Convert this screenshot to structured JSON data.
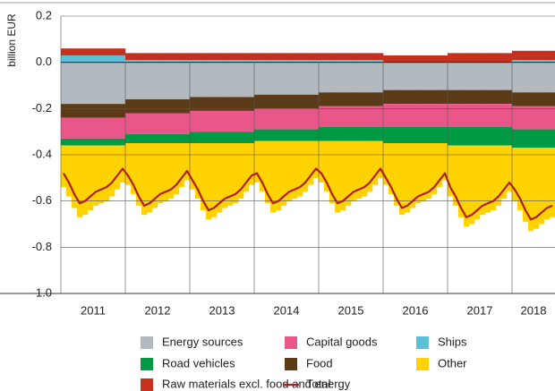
{
  "chart_data": {
    "type": "stacked_bar",
    "y_label": "billion EUR",
    "categories": [
      null,
      null,
      null,
      null,
      null,
      null,
      "2011",
      null,
      null,
      null,
      null,
      null,
      null,
      null,
      null,
      null,
      null,
      null,
      "2012",
      null,
      null,
      null,
      null,
      null,
      null,
      null,
      null,
      null,
      null,
      null,
      "2013",
      null,
      null,
      null,
      null,
      null,
      null,
      null,
      null,
      null,
      null,
      null,
      "2014",
      null,
      null,
      null,
      null,
      null,
      null,
      null,
      null,
      null,
      null,
      null,
      "2015",
      null,
      null,
      null,
      null,
      null,
      null,
      null,
      null,
      null,
      null,
      null,
      "2016",
      null,
      null,
      null,
      null,
      null,
      null,
      null,
      null,
      null,
      null,
      null,
      "2017",
      null,
      null,
      null,
      null,
      null,
      null,
      null,
      null,
      null,
      "2018",
      null,
      null,
      null
    ],
    "ylim": [
      -1,
      0.2
    ],
    "yticks": [
      0.2,
      {
        "value": 0,
        "label": "0.0"
      },
      -0.2,
      -0.4,
      -0.6,
      -0.8,
      {
        "value": -1,
        "label": "-1.0"
      }
    ],
    "grid": true,
    "series": [
      {
        "name": "Ships",
        "color": "#5bc0d8",
        "values": [
          0.03,
          0.03,
          0.03,
          0.03,
          0.03,
          0.03,
          0.03,
          0.03,
          0.03,
          0.03,
          0.03,
          0.03,
          0.01,
          0.01,
          0.01,
          0.01,
          0.01,
          0.01,
          0.01,
          0.01,
          0.01,
          0.01,
          0.01,
          0.01,
          0.01,
          0.01,
          0.01,
          0.01,
          0.01,
          0.01,
          0.01,
          0.01,
          0.01,
          0.01,
          0.01,
          0.01,
          0.01,
          0.01,
          0.01,
          0.01,
          0.01,
          0.01,
          0.01,
          0.01,
          0.01,
          0.01,
          0.01,
          0.01,
          0.01,
          0.01,
          0.01,
          0.01,
          0.01,
          0.01,
          0.01,
          0.01,
          0.01,
          0.01,
          0.01,
          0.01,
          0,
          0,
          0,
          0,
          0,
          0,
          0,
          0,
          0,
          0,
          0,
          0,
          0,
          0,
          0,
          0,
          0,
          0,
          0,
          0,
          0,
          0,
          0,
          0,
          0.01,
          0.01,
          0.01,
          0.01,
          0.01,
          0.01,
          0.01,
          0.01
        ]
      },
      {
        "name": "Raw materials excl. food and energy",
        "color": "#c4321f",
        "values": [
          0.03,
          0.03,
          0.03,
          0.03,
          0.03,
          0.03,
          0.03,
          0.03,
          0.03,
          0.03,
          0.03,
          0.03,
          0.03,
          0.03,
          0.03,
          0.03,
          0.03,
          0.03,
          0.03,
          0.03,
          0.03,
          0.03,
          0.03,
          0.03,
          0.03,
          0.03,
          0.03,
          0.03,
          0.03,
          0.03,
          0.03,
          0.03,
          0.03,
          0.03,
          0.03,
          0.03,
          0.03,
          0.03,
          0.03,
          0.03,
          0.03,
          0.03,
          0.03,
          0.03,
          0.03,
          0.03,
          0.03,
          0.03,
          0.03,
          0.03,
          0.03,
          0.03,
          0.03,
          0.03,
          0.03,
          0.03,
          0.03,
          0.03,
          0.03,
          0.03,
          0.03,
          0.03,
          0.03,
          0.03,
          0.03,
          0.03,
          0.03,
          0.03,
          0.03,
          0.03,
          0.03,
          0.03,
          0.04,
          0.04,
          0.04,
          0.04,
          0.04,
          0.04,
          0.04,
          0.04,
          0.04,
          0.04,
          0.04,
          0.04,
          0.04,
          0.04,
          0.04,
          0.04,
          0.04,
          0.04,
          0.04,
          0.04
        ]
      },
      {
        "name": "Energy sources",
        "color": "#b3babf",
        "values": [
          -0.18,
          -0.18,
          -0.18,
          -0.18,
          -0.18,
          -0.18,
          -0.18,
          -0.18,
          -0.18,
          -0.18,
          -0.18,
          -0.18,
          -0.16,
          -0.16,
          -0.16,
          -0.16,
          -0.16,
          -0.16,
          -0.16,
          -0.16,
          -0.16,
          -0.16,
          -0.16,
          -0.16,
          -0.15,
          -0.15,
          -0.15,
          -0.15,
          -0.15,
          -0.15,
          -0.15,
          -0.15,
          -0.15,
          -0.15,
          -0.15,
          -0.15,
          -0.14,
          -0.14,
          -0.14,
          -0.14,
          -0.14,
          -0.14,
          -0.14,
          -0.14,
          -0.14,
          -0.14,
          -0.14,
          -0.14,
          -0.13,
          -0.13,
          -0.13,
          -0.13,
          -0.13,
          -0.13,
          -0.13,
          -0.13,
          -0.13,
          -0.13,
          -0.13,
          -0.13,
          -0.12,
          -0.12,
          -0.12,
          -0.12,
          -0.12,
          -0.12,
          -0.12,
          -0.12,
          -0.12,
          -0.12,
          -0.12,
          -0.12,
          -0.12,
          -0.12,
          -0.12,
          -0.12,
          -0.12,
          -0.12,
          -0.12,
          -0.12,
          -0.12,
          -0.12,
          -0.12,
          -0.12,
          -0.13,
          -0.13,
          -0.13,
          -0.13,
          -0.13,
          -0.13,
          -0.13,
          -0.13
        ]
      },
      {
        "name": "Food",
        "color": "#5a3a17",
        "values": [
          -0.06,
          -0.06,
          -0.06,
          -0.06,
          -0.06,
          -0.06,
          -0.06,
          -0.06,
          -0.06,
          -0.06,
          -0.06,
          -0.06,
          -0.06,
          -0.06,
          -0.06,
          -0.06,
          -0.06,
          -0.06,
          -0.06,
          -0.06,
          -0.06,
          -0.06,
          -0.06,
          -0.06,
          -0.06,
          -0.06,
          -0.06,
          -0.06,
          -0.06,
          -0.06,
          -0.06,
          -0.06,
          -0.06,
          -0.06,
          -0.06,
          -0.06,
          -0.06,
          -0.06,
          -0.06,
          -0.06,
          -0.06,
          -0.06,
          -0.06,
          -0.06,
          -0.06,
          -0.06,
          -0.06,
          -0.06,
          -0.06,
          -0.06,
          -0.06,
          -0.06,
          -0.06,
          -0.06,
          -0.06,
          -0.06,
          -0.06,
          -0.06,
          -0.06,
          -0.06,
          -0.06,
          -0.06,
          -0.06,
          -0.06,
          -0.06,
          -0.06,
          -0.06,
          -0.06,
          -0.06,
          -0.06,
          -0.06,
          -0.06,
          -0.06,
          -0.06,
          -0.06,
          -0.06,
          -0.06,
          -0.06,
          -0.06,
          -0.06,
          -0.06,
          -0.06,
          -0.06,
          -0.06,
          -0.06,
          -0.06,
          -0.06,
          -0.06,
          -0.06,
          -0.06,
          -0.06,
          -0.06
        ]
      },
      {
        "name": "Capital goods",
        "color": "#e9578a",
        "values": [
          -0.09,
          -0.09,
          -0.09,
          -0.09,
          -0.09,
          -0.09,
          -0.09,
          -0.09,
          -0.09,
          -0.09,
          -0.09,
          -0.09,
          -0.09,
          -0.09,
          -0.09,
          -0.09,
          -0.09,
          -0.09,
          -0.09,
          -0.09,
          -0.09,
          -0.09,
          -0.09,
          -0.09,
          -0.09,
          -0.09,
          -0.09,
          -0.09,
          -0.09,
          -0.09,
          -0.09,
          -0.09,
          -0.09,
          -0.09,
          -0.09,
          -0.09,
          -0.09,
          -0.09,
          -0.09,
          -0.09,
          -0.09,
          -0.09,
          -0.09,
          -0.09,
          -0.09,
          -0.09,
          -0.09,
          -0.09,
          -0.09,
          -0.09,
          -0.09,
          -0.09,
          -0.09,
          -0.09,
          -0.09,
          -0.09,
          -0.09,
          -0.09,
          -0.09,
          -0.09,
          -0.1,
          -0.1,
          -0.1,
          -0.1,
          -0.1,
          -0.1,
          -0.1,
          -0.1,
          -0.1,
          -0.1,
          -0.1,
          -0.1,
          -0.1,
          -0.1,
          -0.1,
          -0.1,
          -0.1,
          -0.1,
          -0.1,
          -0.1,
          -0.1,
          -0.1,
          -0.1,
          -0.1,
          -0.1,
          -0.1,
          -0.1,
          -0.1,
          -0.1,
          -0.1,
          -0.1,
          -0.1
        ]
      },
      {
        "name": "Road vehicles",
        "color": "#009a44",
        "values": [
          -0.03,
          -0.03,
          -0.03,
          -0.03,
          -0.03,
          -0.03,
          -0.03,
          -0.03,
          -0.03,
          -0.03,
          -0.03,
          -0.03,
          -0.04,
          -0.04,
          -0.04,
          -0.04,
          -0.04,
          -0.04,
          -0.04,
          -0.04,
          -0.04,
          -0.04,
          -0.04,
          -0.04,
          -0.05,
          -0.05,
          -0.05,
          -0.05,
          -0.05,
          -0.05,
          -0.05,
          -0.05,
          -0.05,
          -0.05,
          -0.05,
          -0.05,
          -0.05,
          -0.05,
          -0.05,
          -0.05,
          -0.05,
          -0.05,
          -0.05,
          -0.05,
          -0.05,
          -0.05,
          -0.05,
          -0.05,
          -0.06,
          -0.06,
          -0.06,
          -0.06,
          -0.06,
          -0.06,
          -0.06,
          -0.06,
          -0.06,
          -0.06,
          -0.06,
          -0.06,
          -0.07,
          -0.07,
          -0.07,
          -0.07,
          -0.07,
          -0.07,
          -0.07,
          -0.07,
          -0.07,
          -0.07,
          -0.07,
          -0.07,
          -0.08,
          -0.08,
          -0.08,
          -0.08,
          -0.08,
          -0.08,
          -0.08,
          -0.08,
          -0.08,
          -0.08,
          -0.08,
          -0.08,
          -0.08,
          -0.08,
          -0.08,
          -0.08,
          -0.08,
          -0.08,
          -0.08,
          -0.08
        ]
      },
      {
        "name": "Other",
        "color": "#ffd200",
        "values": [
          -0.18,
          -0.22,
          -0.27,
          -0.31,
          -0.3,
          -0.28,
          -0.26,
          -0.25,
          -0.24,
          -0.22,
          -0.19,
          -0.16,
          -0.18,
          -0.22,
          -0.27,
          -0.31,
          -0.3,
          -0.28,
          -0.26,
          -0.25,
          -0.24,
          -0.22,
          -0.19,
          -0.16,
          -0.2,
          -0.24,
          -0.29,
          -0.33,
          -0.32,
          -0.3,
          -0.28,
          -0.27,
          -0.26,
          -0.24,
          -0.21,
          -0.18,
          -0.18,
          -0.22,
          -0.27,
          -0.31,
          -0.3,
          -0.28,
          -0.26,
          -0.25,
          -0.24,
          -0.22,
          -0.19,
          -0.16,
          -0.18,
          -0.22,
          -0.27,
          -0.31,
          -0.3,
          -0.28,
          -0.26,
          -0.25,
          -0.24,
          -0.22,
          -0.19,
          -0.16,
          -0.18,
          -0.22,
          -0.27,
          -0.31,
          -0.3,
          -0.28,
          -0.26,
          -0.25,
          -0.24,
          -0.22,
          -0.19,
          -0.16,
          -0.22,
          -0.26,
          -0.31,
          -0.35,
          -0.34,
          -0.32,
          -0.3,
          -0.29,
          -0.28,
          -0.26,
          -0.23,
          -0.2,
          -0.23,
          -0.27,
          -0.32,
          -0.36,
          -0.35,
          -0.33,
          -0.31,
          -0.3
        ]
      },
      {
        "name": "Total",
        "color": "#b01f1f",
        "kind": "line",
        "values": [
          -0.48,
          -0.52,
          -0.57,
          -0.61,
          -0.6,
          -0.58,
          -0.56,
          -0.55,
          -0.54,
          -0.52,
          -0.49,
          -0.46,
          -0.49,
          -0.53,
          -0.58,
          -0.62,
          -0.61,
          -0.59,
          -0.57,
          -0.56,
          -0.55,
          -0.53,
          -0.5,
          -0.47,
          -0.51,
          -0.55,
          -0.6,
          -0.64,
          -0.63,
          -0.61,
          -0.59,
          -0.58,
          -0.57,
          -0.55,
          -0.52,
          -0.49,
          -0.48,
          -0.52,
          -0.57,
          -0.61,
          -0.6,
          -0.58,
          -0.56,
          -0.55,
          -0.54,
          -0.52,
          -0.49,
          -0.46,
          -0.48,
          -0.52,
          -0.57,
          -0.61,
          -0.6,
          -0.58,
          -0.56,
          -0.55,
          -0.54,
          -0.52,
          -0.49,
          -0.46,
          -0.5,
          -0.54,
          -0.59,
          -0.63,
          -0.62,
          -0.6,
          -0.58,
          -0.57,
          -0.56,
          -0.54,
          -0.51,
          -0.48,
          -0.54,
          -0.58,
          -0.63,
          -0.67,
          -0.66,
          -0.64,
          -0.62,
          -0.61,
          -0.6,
          -0.58,
          -0.55,
          -0.52,
          -0.55,
          -0.59,
          -0.64,
          -0.68,
          -0.67,
          -0.65,
          -0.63,
          -0.62
        ]
      }
    ]
  }
}
